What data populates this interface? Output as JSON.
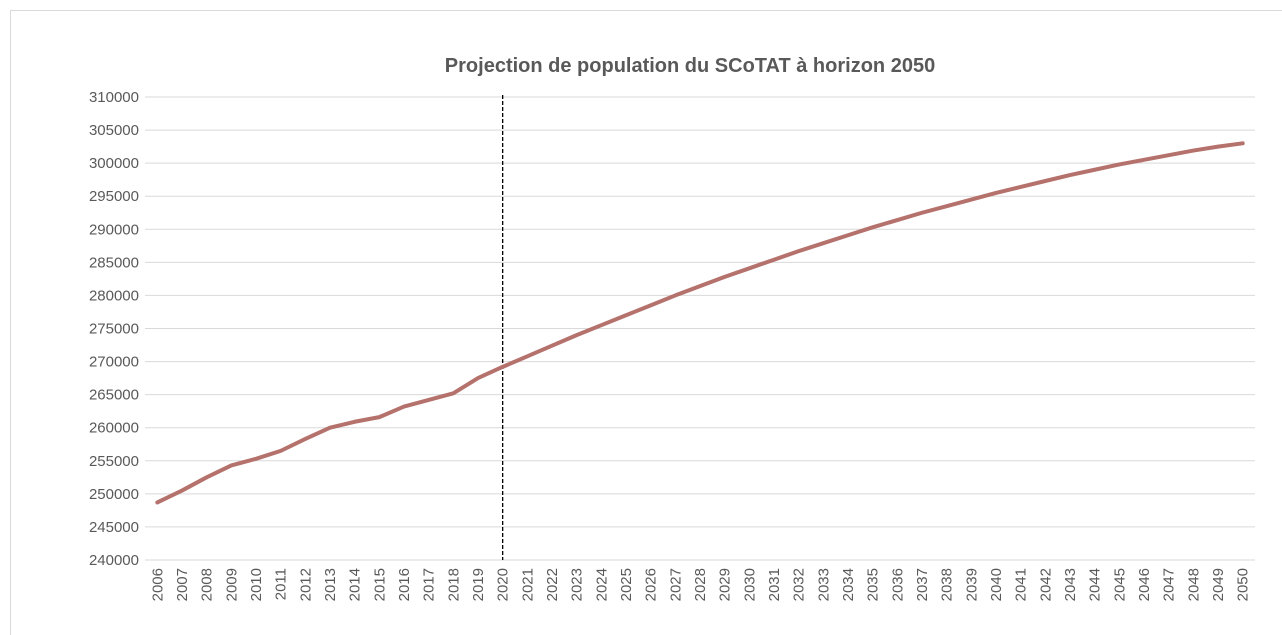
{
  "chart_data": {
    "type": "line",
    "title": "Projection de population du SCoTAT à horizon 2050",
    "categories": [
      "2006",
      "2007",
      "2008",
      "2009",
      "2010",
      "2011",
      "2012",
      "2013",
      "2014",
      "2015",
      "2016",
      "2017",
      "2018",
      "2019",
      "2020",
      "2021",
      "2022",
      "2023",
      "2024",
      "2025",
      "2026",
      "2027",
      "2028",
      "2029",
      "2030",
      "2031",
      "2032",
      "2033",
      "2034",
      "2035",
      "2036",
      "2037",
      "2038",
      "2039",
      "2040",
      "2041",
      "2042",
      "2043",
      "2044",
      "2045",
      "2046",
      "2047",
      "2048",
      "2049",
      "2050"
    ],
    "values": [
      248700,
      250500,
      252500,
      254300,
      255300,
      256500,
      258300,
      260000,
      260900,
      261600,
      263200,
      264200,
      265200,
      267500,
      269200,
      270800,
      272400,
      274000,
      275500,
      277000,
      278500,
      280000,
      281400,
      282800,
      284100,
      285400,
      286700,
      287900,
      289100,
      290300,
      291400,
      292500,
      293500,
      294500,
      295500,
      296400,
      297300,
      298200,
      299000,
      299800,
      300500,
      301200,
      301900,
      302500,
      303000
    ],
    "color": "#b5716b",
    "ylim": [
      240000,
      310000
    ],
    "yticks": [
      240000,
      245000,
      250000,
      255000,
      260000,
      265000,
      270000,
      275000,
      280000,
      285000,
      290000,
      295000,
      300000,
      305000,
      310000
    ],
    "grid": true,
    "vline_at": "2020"
  }
}
